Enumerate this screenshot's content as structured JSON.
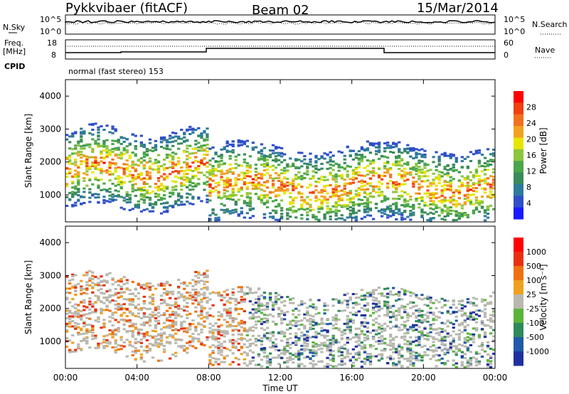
{
  "header": {
    "station": "Pykkvibaer (fitACF)",
    "beam": "Beam 02",
    "date": "15/Mar/2014"
  },
  "params": {
    "nsky_label": "N.Sky",
    "nsearch_label": "N.Search",
    "freq_label_1": "Freq.",
    "freq_label_2": "[MHz]",
    "nave_label": "Nave",
    "cpid_label": "CPID",
    "cpid_text": "normal (fast stereo) 153",
    "noise_ticks": [
      "10^5",
      "10^0"
    ],
    "noise_ticks_right": [
      "10^5",
      "10^0"
    ],
    "freq_ticks": [
      "18",
      "8"
    ],
    "nave_ticks": [
      "60",
      "0"
    ]
  },
  "chart_data": [
    {
      "type": "heatmap",
      "name": "power",
      "ylabel": "Slant Range [km]",
      "yticks": [
        "4000",
        "3000",
        "2000",
        "1000"
      ],
      "ylim": [
        180,
        4500
      ],
      "colorbar_label": "Power [dB]",
      "colorbar_ticks": [
        "28",
        "24",
        "20",
        "16",
        "12",
        "8",
        "4"
      ],
      "colors": [
        "#1a1aff",
        "#2f4fc8",
        "#2e7a9a",
        "#3a8a5a",
        "#4aa64a",
        "#8cc63f",
        "#e6e600",
        "#f2a020",
        "#f07020",
        "#f04010",
        "#ff0000"
      ]
    },
    {
      "type": "heatmap",
      "name": "velocity",
      "ylabel": "Slant Range [km]",
      "yticks": [
        "4000",
        "3000",
        "2000",
        "1000"
      ],
      "ylim": [
        180,
        4500
      ],
      "colorbar_label": "Velocity [m s⁻¹]",
      "colorbar_ticks": [
        "1000",
        "500",
        "100",
        "25",
        "-25",
        "-100",
        "-500",
        "-1000"
      ],
      "colors": [
        "#2030a0",
        "#205aa8",
        "#2e8a5a",
        "#5ab43a",
        "#b8b8b0",
        "#f0a020",
        "#f07010",
        "#e83010",
        "#ff0000"
      ]
    }
  ],
  "xaxis": {
    "label": "Time UT",
    "ticks": [
      "00:00",
      "04:00",
      "08:00",
      "12:00",
      "16:00",
      "20:00",
      "00:00"
    ]
  }
}
